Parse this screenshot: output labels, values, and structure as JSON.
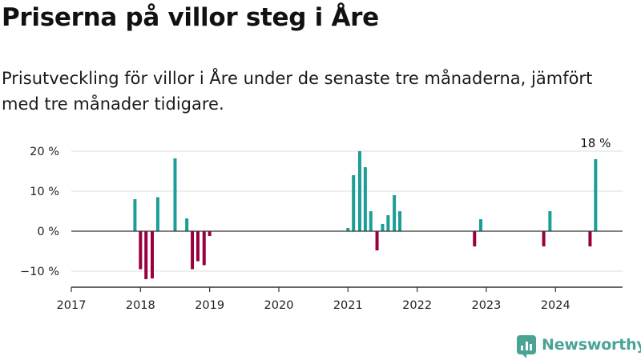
{
  "header": {
    "title": "Priserna på villor steg i Åre",
    "subtitle": "Prisutveckling för villor i Åre under de senaste tre månaderna, jämfört med tre månader tidigare."
  },
  "brand": {
    "name": "Newsworthy",
    "icon": "bar-chart-bubble-icon"
  },
  "colors": {
    "positive": "#1a9e96",
    "negative": "#99003f",
    "brand": "#4aa394",
    "grid": "#dddddd",
    "axis": "#333333"
  },
  "chart_data": {
    "type": "bar",
    "title": "",
    "xlabel": "",
    "ylabel": "",
    "ylim": [
      -13,
      23
    ],
    "xlim": [
      2017,
      2024.97
    ],
    "y_ticks": [
      {
        "value": 20,
        "label": "20 %"
      },
      {
        "value": 10,
        "label": "10 %"
      },
      {
        "value": 0,
        "label": "0 %"
      },
      {
        "value": -10,
        "label": "−10 %"
      }
    ],
    "x_ticks": [
      {
        "value": 2017,
        "label": "2017"
      },
      {
        "value": 2018,
        "label": "2018"
      },
      {
        "value": 2019,
        "label": "2019"
      },
      {
        "value": 2020,
        "label": "2020"
      },
      {
        "value": 2021,
        "label": "2021"
      },
      {
        "value": 2022,
        "label": "2022"
      },
      {
        "value": 2023,
        "label": "2023"
      },
      {
        "value": 2024,
        "label": "2024"
      }
    ],
    "grid": true,
    "legend": "none",
    "annotations": [
      {
        "x": 2024.58,
        "y": 18,
        "text": "18 %"
      }
    ],
    "x": [
      2017.92,
      2018.0,
      2018.08,
      2018.17,
      2018.25,
      2018.5,
      2018.67,
      2018.75,
      2018.83,
      2018.92,
      2019.0,
      2021.0,
      2021.08,
      2021.17,
      2021.25,
      2021.33,
      2021.42,
      2021.5,
      2021.58,
      2021.67,
      2021.75,
      2022.83,
      2022.92,
      2023.83,
      2023.92,
      2024.5,
      2024.58
    ],
    "values": [
      8,
      -9.5,
      -12,
      -11.8,
      8.5,
      18.2,
      3.2,
      -9.5,
      -7.5,
      -8.5,
      -1.2,
      0.8,
      14,
      20,
      16,
      5,
      -4.8,
      1.8,
      4,
      9,
      5,
      -3.8,
      3,
      -3.8,
      5,
      -3.8,
      18
    ]
  }
}
